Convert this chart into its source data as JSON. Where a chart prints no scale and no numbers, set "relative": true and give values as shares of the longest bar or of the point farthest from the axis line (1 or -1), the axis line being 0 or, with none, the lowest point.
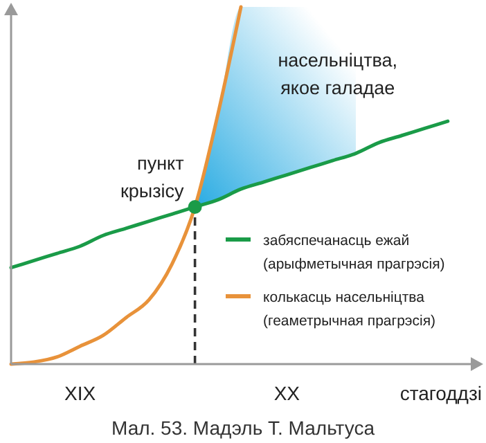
{
  "chart_data": {
    "type": "line",
    "relative": true,
    "title": "Мал. 53. Мадэль Т. Мальтуса",
    "xlabel": "стагоддзі",
    "categories": [
      null,
      null,
      null,
      "XIX",
      null,
      null,
      null,
      null,
      null,
      null,
      null,
      null,
      "XX",
      null,
      null,
      null,
      null,
      null,
      null,
      null,
      null
    ],
    "series": [
      {
        "name": "забяспечанасць ежай (арыфметычная прагрэсія)",
        "color": "#1a9b48",
        "values": [
          0.27,
          0.29,
          0.31,
          0.33,
          0.36,
          0.38,
          0.4,
          0.42,
          0.44,
          0.46,
          0.49,
          0.51,
          0.53,
          0.55,
          0.57,
          0.59,
          0.62,
          0.64,
          0.66,
          0.68,
          null
        ],
        "lower": [
          null,
          null,
          null,
          null,
          null,
          null,
          null,
          null,
          0.44,
          0.46,
          0.49,
          0.51,
          0.53,
          0.55,
          0.57,
          0.59,
          null,
          null,
          null,
          null,
          null
        ],
        "upper": [
          null,
          null,
          null,
          null,
          null,
          null,
          null,
          null,
          0.44,
          0.7,
          1,
          1,
          1,
          1,
          1,
          1,
          null,
          null,
          null,
          null,
          null
        ]
      },
      {
        "name": "колькасць насельніцтва (геаметрычная прагрэсія)",
        "color": "#e8923a",
        "values": [
          0,
          0.006,
          0.02,
          0.05,
          0.08,
          0.13,
          0.18,
          0.28,
          0.44,
          0.7,
          1.0,
          null,
          null,
          null,
          null,
          null,
          null,
          null,
          null,
          null,
          null
        ]
      },
      {
        "type": "lollipop",
        "color": "#1a9b48",
        "line_style": "dashed",
        "values": [
          null,
          null,
          null,
          null,
          null,
          null,
          null,
          null,
          0.44,
          null,
          null,
          null,
          null,
          null,
          null,
          null,
          null,
          null,
          null,
          null,
          null
        ]
      }
    ],
    "annotations": [
      "пункт крызісу",
      "насельніцтва, якое галадае"
    ],
    "legend": "bottom right",
    "line_style": "solid"
  }
}
